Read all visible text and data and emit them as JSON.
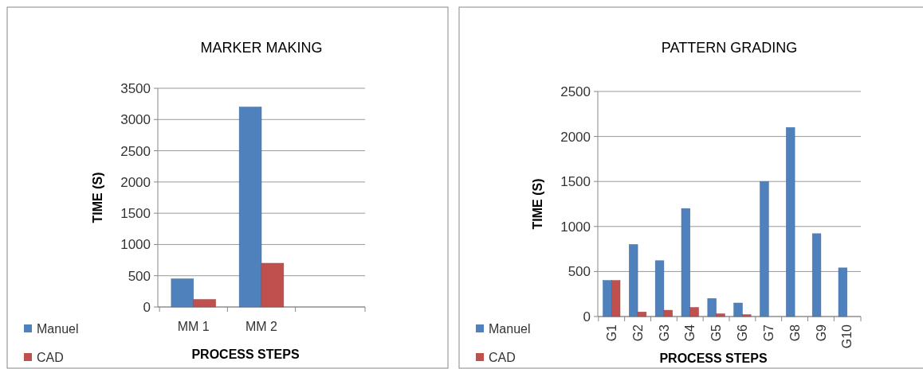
{
  "chart_data": [
    {
      "type": "bar",
      "title": "MARKER MAKING",
      "xlabel": "PROCESS STEPS",
      "ylabel": "TIME (S)",
      "categories": [
        "MM 1",
        "MM 2",
        null
      ],
      "series": [
        {
          "name": "Manuel",
          "color": "#4f81bd",
          "values": [
            450,
            3200,
            null
          ]
        },
        {
          "name": "CAD",
          "color": "#c0504d",
          "values": [
            120,
            700,
            null
          ]
        }
      ],
      "ylim": [
        0,
        3500
      ],
      "yticks": [
        0,
        500,
        1000,
        1500,
        2000,
        2500,
        3000,
        3500
      ],
      "grid": "y",
      "legend": "bottom left"
    },
    {
      "type": "bar",
      "title": "PATTERN GRADING",
      "xlabel": "PROCESS STEPS",
      "ylabel": "TIME (S)",
      "categories": [
        "G1",
        "G2",
        "G3",
        "G4",
        "G5",
        "G6",
        "G7",
        "G8",
        "G9",
        "G10"
      ],
      "series": [
        {
          "name": "Manuel",
          "color": "#4f81bd",
          "values": [
            400,
            800,
            620,
            1200,
            200,
            150,
            1500,
            2100,
            920,
            540
          ]
        },
        {
          "name": "CAD",
          "color": "#c0504d",
          "values": [
            400,
            50,
            70,
            100,
            30,
            20,
            0,
            0,
            0,
            0
          ]
        }
      ],
      "ylim": [
        0,
        2500
      ],
      "yticks": [
        0,
        500,
        1000,
        1500,
        2000,
        2500
      ],
      "grid": "y",
      "legend": "bottom left"
    }
  ]
}
